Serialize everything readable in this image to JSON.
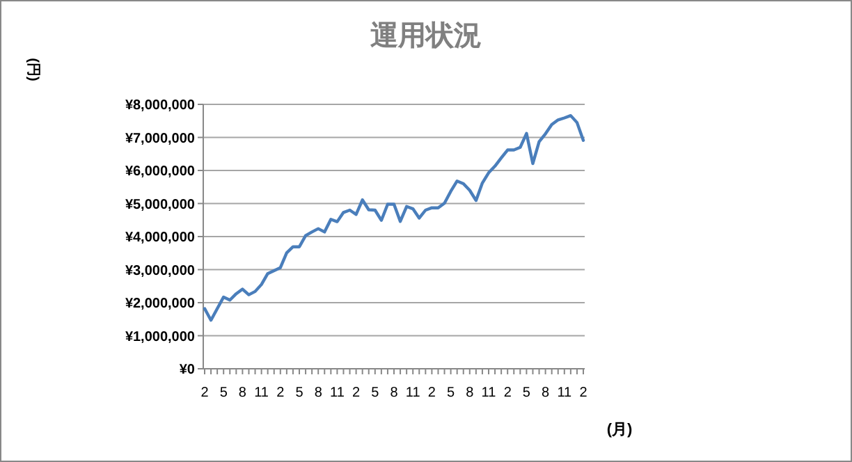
{
  "chart_data": {
    "type": "line",
    "title": "運用状況",
    "annotations": [
      "(円)"
    ],
    "xlabel": "(月)",
    "categories": [
      "2",
      null,
      null,
      "5",
      null,
      null,
      "8",
      null,
      null,
      "11",
      null,
      null,
      "2",
      null,
      null,
      "5",
      null,
      null,
      "8",
      null,
      null,
      "11",
      null,
      null,
      "2",
      null,
      null,
      "5",
      null,
      null,
      "8",
      null,
      null,
      "11",
      null,
      null,
      "2",
      null,
      null,
      "5",
      null,
      null,
      "8",
      null,
      null,
      "11",
      null,
      null,
      "2",
      null,
      null,
      "5",
      null,
      null,
      "8",
      null,
      null,
      "11",
      null,
      null,
      "2"
    ],
    "series": [
      {
        "color": "#4a7ebb",
        "values": [
          1820000,
          1470000,
          1820000,
          2170000,
          2080000,
          2270000,
          2410000,
          2240000,
          2340000,
          2550000,
          2880000,
          2970000,
          3060000,
          3510000,
          3690000,
          3690000,
          4030000,
          4140000,
          4240000,
          4140000,
          4520000,
          4450000,
          4730000,
          4800000,
          4670000,
          5110000,
          4810000,
          4800000,
          4490000,
          4980000,
          4980000,
          4460000,
          4910000,
          4840000,
          4560000,
          4800000,
          4870000,
          4870000,
          5010000,
          5370000,
          5680000,
          5600000,
          5400000,
          5090000,
          5620000,
          5930000,
          6130000,
          6380000,
          6620000,
          6620000,
          6700000,
          7120000,
          6210000,
          6870000,
          7110000,
          7390000,
          7530000,
          7590000,
          7660000,
          7450000,
          6910000
        ]
      }
    ],
    "ylim": [
      0,
      8000000
    ],
    "yticks": [
      {
        "value": 0,
        "label": "¥0"
      },
      {
        "value": 1000000,
        "label": "¥1,000,000"
      },
      {
        "value": 2000000,
        "label": "¥2,000,000"
      },
      {
        "value": 3000000,
        "label": "¥3,000,000"
      },
      {
        "value": 4000000,
        "label": "¥4,000,000"
      },
      {
        "value": 5000000,
        "label": "¥5,000,000"
      },
      {
        "value": 6000000,
        "label": "¥6,000,000"
      },
      {
        "value": 7000000,
        "label": "¥7,000,000"
      },
      {
        "value": 8000000,
        "label": "¥8,000,000"
      }
    ],
    "grid": "y",
    "line_style": "solid"
  }
}
